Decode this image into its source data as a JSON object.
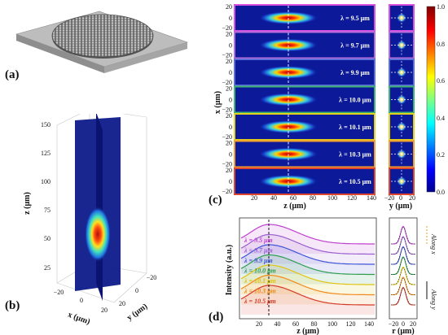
{
  "panel_labels": {
    "a": "(a)",
    "b": "(b)",
    "c": "(c)",
    "d": "(d)"
  },
  "panel_b": {
    "z_label": "z (μm)",
    "x_label": "x (μm)",
    "y_label": "y (μm)",
    "z_ticks": [
      "25",
      "50",
      "75",
      "100",
      "125",
      "150"
    ],
    "x_ticks": [
      "−20",
      "0",
      "20"
    ],
    "y_ticks": [
      "20",
      "0",
      "−20"
    ]
  },
  "panel_c": {
    "x_label": "x (μm)",
    "z_label": "z (μm)",
    "y_label": "y (μm)",
    "x_ticks": [
      "20",
      "0",
      "−20"
    ],
    "z_ticks": [
      "20",
      "40",
      "60",
      "80",
      "100",
      "120",
      "140"
    ],
    "y_ticks": [
      "−20",
      "0",
      "20"
    ],
    "rows": [
      {
        "lambda_label": "λ = 9.5 μm",
        "border": "#d94fe0"
      },
      {
        "lambda_label": "λ = 9.7 μm",
        "border": "#b56ad9"
      },
      {
        "lambda_label": "λ = 9.9 μm",
        "border": "#5b6fd9"
      },
      {
        "lambda_label": "λ = 10.0 μm",
        "border": "#3cb371"
      },
      {
        "lambda_label": "λ = 10.1 μm",
        "border": "#e3d21c"
      },
      {
        "lambda_label": "λ = 10.3 μm",
        "border": "#f29b30"
      },
      {
        "lambda_label": "λ = 10.5 μm",
        "border": "#e0452f"
      }
    ],
    "colorbar_ticks": [
      "1.0",
      "0.8",
      "0.6",
      "0.4",
      "0.2",
      "0.0"
    ]
  },
  "panel_d": {
    "ylabel": "Intensity (a.u.)",
    "z_label": "z (μm)",
    "r_label": "r (μm)",
    "z_ticks": [
      "20",
      "40",
      "60",
      "80",
      "100",
      "120",
      "140"
    ],
    "r_ticks": [
      "−20",
      "0",
      "20"
    ],
    "along_x": "Along x",
    "along_y": "Along y",
    "curves": [
      {
        "label": "λ = 9.5 μm",
        "color": "#c040d0"
      },
      {
        "label": "λ = 9.7 μm",
        "color": "#9a5fd0"
      },
      {
        "label": "λ = 9.9 μm",
        "color": "#3f55d8"
      },
      {
        "label": "λ = 10.0 μm",
        "color": "#2e9e4f"
      },
      {
        "label": "λ = 10.1 μm",
        "color": "#e0c410"
      },
      {
        "label": "λ = 10.3 μm",
        "color": "#f08a1c"
      },
      {
        "label": "λ = 10.5 μm",
        "color": "#d63a2a"
      }
    ]
  }
}
